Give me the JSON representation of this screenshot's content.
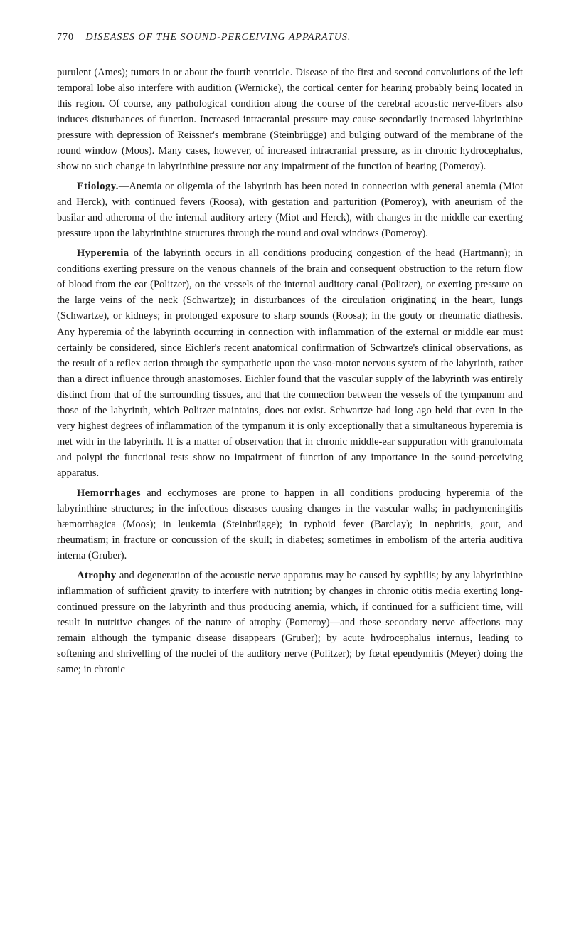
{
  "header": {
    "page_number": "770",
    "title": "DISEASES OF THE SOUND-PERCEIVING APPARATUS."
  },
  "paragraphs": {
    "p1": "purulent (Ames); tumors in or about the fourth ventricle. Disease of the first and second convolutions of the left temporal lobe also interfere with audition (Wernicke), the cortical center for hearing probably being located in this region. Of course, any pathological condition along the course of the cerebral acoustic nerve-fibers also induces disturbances of function. Increased intracranial pressure may cause secondarily increased labyrinthine pressure with depression of Reissner's membrane (Steinbrügge) and bulging outward of the membrane of the round window (Moos). Many cases, however, of increased intracranial pressure, as in chronic hydrocephalus, show no such change in labyrinthine pressure nor any impairment of the function of hearing (Pomeroy).",
    "p2_head": "Etiology.",
    "p2": "—Anemia or oligemia of the labyrinth has been noted in connection with general anemia (Miot and Herck), with continued fevers (Roosa), with gestation and parturition (Pomeroy), with aneurism of the basilar and atheroma of the internal auditory artery (Miot and Herck), with changes in the middle ear exerting pressure upon the labyrinthine structures through the round and oval windows (Pomeroy).",
    "p3_head": "Hyperemia",
    "p3": " of the labyrinth occurs in all conditions producing congestion of the head (Hartmann); in conditions exerting pressure on the venous channels of the brain and consequent obstruction to the return flow of blood from the ear (Politzer), on the vessels of the internal auditory canal (Politzer), or exerting pressure on the large veins of the neck (Schwartze); in disturbances of the circulation originating in the heart, lungs (Schwartze), or kidneys; in prolonged exposure to sharp sounds (Roosa); in the gouty or rheumatic diathesis. Any hyperemia of the labyrinth occurring in connection with inflammation of the external or middle ear must certainly be considered, since Eichler's recent anatomical confirmation of Schwartze's clinical observations, as the result of a reflex action through the sympathetic upon the vaso-motor nervous system of the labyrinth, rather than a direct influence through anastomoses. Eichler found that the vascular supply of the labyrinth was entirely distinct from that of the surrounding tissues, and that the connection between the vessels of the tympanum and those of the labyrinth, which Politzer maintains, does not exist. Schwartze had long ago held that even in the very highest degrees of inflammation of the tympanum it is only exceptionally that a simultaneous hyperemia is met with in the labyrinth. It is a matter of observation that in chronic middle-ear suppuration with granulomata and polypi the functional tests show no impairment of function of any importance in the sound-perceiving apparatus.",
    "p4_head": "Hemorrhages",
    "p4": " and ecchymoses are prone to happen in all conditions producing hyperemia of the labyrinthine structures; in the infectious diseases causing changes in the vascular walls; in pachymeningitis hæmorrhagica (Moos); in leukemia (Steinbrügge); in typhoid fever (Barclay); in nephritis, gout, and rheumatism; in fracture or concussion of the skull; in diabetes; sometimes in embolism of the arteria auditiva interna (Gruber).",
    "p5_head": "Atrophy",
    "p5": " and degeneration of the acoustic nerve apparatus may be caused by syphilis; by any labyrinthine inflammation of sufficient gravity to interfere with nutrition; by changes in chronic otitis media exerting long-continued pressure on the labyrinth and thus producing anemia, which, if continued for a sufficient time, will result in nutritive changes of the nature of atrophy (Pomeroy)—and these secondary nerve affections may remain although the tympanic disease disappears (Gruber); by acute hydrocephalus internus, leading to softening and shrivelling of the nuclei of the auditory nerve (Politzer); by fœtal ependymitis (Meyer) doing the same; in chronic"
  }
}
